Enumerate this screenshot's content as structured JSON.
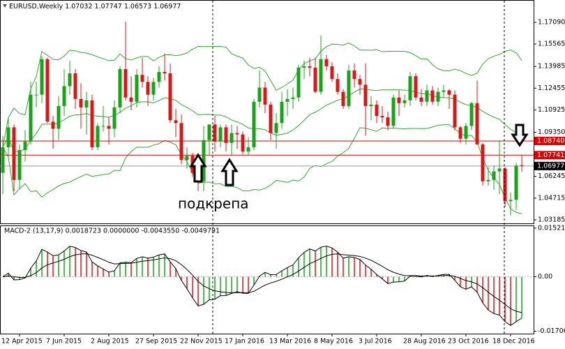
{
  "chart_data": {
    "type": "candlestick",
    "title": "EURUSD,Weekly",
    "categories": [
      null,
      null,
      null,
      "12 Apr 2015",
      null,
      null,
      null,
      null,
      null,
      null,
      null,
      "7 Jun 2015",
      null,
      null,
      null,
      null,
      null,
      null,
      null,
      "2 Aug 2015",
      null,
      null,
      null,
      null,
      null,
      null,
      null,
      "27 Sep 2015",
      null,
      null,
      null,
      null,
      null,
      null,
      null,
      "22 Nov 2015",
      null,
      null,
      null,
      null,
      null,
      null,
      null,
      "17 Jan 2016",
      null,
      null,
      null,
      null,
      null,
      null,
      null,
      "13 Mar 2016",
      null,
      null,
      null,
      null,
      null,
      null,
      null,
      "8 May 2016",
      null,
      null,
      null,
      null,
      null,
      null,
      null,
      "3 Jul 2016",
      null,
      null,
      null,
      null,
      null,
      null,
      null,
      "28 Aug 2016",
      null,
      null,
      null,
      null,
      null,
      null,
      null,
      "23 Oct 2016",
      null,
      null,
      null,
      null,
      null,
      null,
      null,
      "18 Dec 2016",
      null,
      null
    ],
    "candles": [
      [
        1.065,
        1.091,
        1.05,
        1.083
      ],
      [
        1.083,
        1.104,
        1.076,
        1.097
      ],
      [
        1.097,
        1.099,
        1.052,
        1.06
      ],
      [
        1.06,
        1.085,
        1.054,
        1.081
      ],
      [
        1.081,
        1.095,
        1.073,
        1.087
      ],
      [
        1.087,
        1.129,
        1.085,
        1.12
      ],
      [
        1.12,
        1.129,
        1.111,
        1.12
      ],
      [
        1.12,
        1.147,
        1.114,
        1.145
      ],
      [
        1.145,
        1.146,
        1.1,
        1.101
      ],
      [
        1.101,
        1.105,
        1.082,
        1.096
      ],
      [
        1.096,
        1.119,
        1.088,
        1.112
      ],
      [
        1.112,
        1.138,
        1.105,
        1.126
      ],
      [
        1.126,
        1.144,
        1.12,
        1.135
      ],
      [
        1.135,
        1.138,
        1.11,
        1.117
      ],
      [
        1.117,
        1.128,
        1.096,
        1.111
      ],
      [
        1.111,
        1.122,
        1.092,
        1.116
      ],
      [
        1.116,
        1.12,
        1.081,
        1.083
      ],
      [
        1.083,
        1.1,
        1.081,
        1.098
      ],
      [
        1.098,
        1.112,
        1.094,
        1.098
      ],
      [
        1.098,
        1.104,
        1.085,
        1.096
      ],
      [
        1.096,
        1.116,
        1.09,
        1.111
      ],
      [
        1.111,
        1.14,
        1.107,
        1.138
      ],
      [
        1.138,
        1.1714,
        1.116,
        1.118
      ],
      [
        1.118,
        1.133,
        1.109,
        1.115
      ],
      [
        1.115,
        1.138,
        1.111,
        1.134
      ],
      [
        1.134,
        1.146,
        1.125,
        1.129
      ],
      [
        1.129,
        1.133,
        1.112,
        1.12
      ],
      [
        1.12,
        1.132,
        1.116,
        1.129
      ],
      [
        1.129,
        1.14,
        1.125,
        1.136
      ],
      [
        1.136,
        1.149,
        1.13,
        1.135
      ],
      [
        1.135,
        1.142,
        1.1,
        1.102
      ],
      [
        1.102,
        1.11,
        1.09,
        1.1
      ],
      [
        1.1,
        1.106,
        1.071,
        1.074
      ],
      [
        1.074,
        1.083,
        1.068,
        1.077
      ],
      [
        1.077,
        1.079,
        1.062,
        1.065
      ],
      [
        1.065,
        1.07,
        1.052,
        1.059
      ],
      [
        1.059,
        1.098,
        1.052,
        1.088
      ],
      [
        1.088,
        1.099,
        1.078,
        1.099
      ],
      [
        1.099,
        1.105,
        1.08,
        1.087
      ],
      [
        1.087,
        1.099,
        1.083,
        1.097
      ],
      [
        1.097,
        1.099,
        1.08,
        1.086
      ],
      [
        1.086,
        1.099,
        1.077,
        1.093
      ],
      [
        1.093,
        1.098,
        1.082,
        1.092
      ],
      [
        1.092,
        1.094,
        1.078,
        1.08
      ],
      [
        1.08,
        1.09,
        1.077,
        1.083
      ],
      [
        1.083,
        1.117,
        1.081,
        1.115
      ],
      [
        1.115,
        1.137,
        1.111,
        1.125
      ],
      [
        1.125,
        1.129,
        1.107,
        1.113
      ],
      [
        1.113,
        1.115,
        1.088,
        1.093
      ],
      [
        1.093,
        1.107,
        1.082,
        1.1
      ],
      [
        1.1,
        1.122,
        1.096,
        1.115
      ],
      [
        1.115,
        1.124,
        1.105,
        1.117
      ],
      [
        1.117,
        1.125,
        1.11,
        1.118
      ],
      [
        1.118,
        1.141,
        1.115,
        1.139
      ],
      [
        1.139,
        1.144,
        1.131,
        1.14
      ],
      [
        1.14,
        1.146,
        1.133,
        1.139
      ],
      [
        1.139,
        1.146,
        1.121,
        1.122
      ],
      [
        1.122,
        1.1616,
        1.12,
        1.145
      ],
      [
        1.145,
        1.148,
        1.137,
        1.14
      ],
      [
        1.14,
        1.143,
        1.129,
        1.131
      ],
      [
        1.131,
        1.135,
        1.12,
        1.122
      ],
      [
        1.122,
        1.124,
        1.11,
        1.112
      ],
      [
        1.112,
        1.141,
        1.11,
        1.137
      ],
      [
        1.137,
        1.142,
        1.125,
        1.131
      ],
      [
        1.131,
        1.134,
        1.12,
        1.127
      ],
      [
        1.127,
        1.142,
        1.091,
        1.112
      ],
      [
        1.112,
        1.119,
        1.102,
        1.113
      ],
      [
        1.113,
        1.116,
        1.1,
        1.105
      ],
      [
        1.105,
        1.112,
        1.1,
        1.104
      ],
      [
        1.104,
        1.108,
        1.095,
        1.098
      ],
      [
        1.098,
        1.12,
        1.096,
        1.118
      ],
      [
        1.118,
        1.123,
        1.105,
        1.114
      ],
      [
        1.114,
        1.12,
        1.111,
        1.116
      ],
      [
        1.116,
        1.136,
        1.112,
        1.133
      ],
      [
        1.133,
        1.135,
        1.116,
        1.118
      ],
      [
        1.118,
        1.124,
        1.112,
        1.115
      ],
      [
        1.115,
        1.127,
        1.112,
        1.123
      ],
      [
        1.123,
        1.126,
        1.113,
        1.115
      ],
      [
        1.115,
        1.125,
        1.112,
        1.122
      ],
      [
        1.122,
        1.127,
        1.118,
        1.123
      ],
      [
        1.123,
        1.124,
        1.11,
        1.12
      ],
      [
        1.12,
        1.123,
        1.095,
        1.097
      ],
      [
        1.097,
        1.098,
        1.086,
        1.089
      ],
      [
        1.089,
        1.1,
        1.085,
        1.098
      ],
      [
        1.098,
        1.115,
        1.095,
        1.114
      ],
      [
        1.114,
        1.13,
        1.085,
        1.085
      ],
      [
        1.085,
        1.086,
        1.056,
        1.059
      ],
      [
        1.059,
        1.069,
        1.056,
        1.06
      ],
      [
        1.06,
        1.07,
        1.053,
        1.066
      ],
      [
        1.066,
        1.088,
        1.05,
        1.068
      ],
      [
        1.068,
        1.069,
        1.041,
        1.045
      ],
      [
        1.045,
        1.051,
        1.035,
        1.046
      ],
      [
        1.046,
        1.072,
        1.039,
        1.07
      ],
      [
        1.07032,
        1.07747,
        1.06573,
        1.06977
      ]
    ],
    "ylim": [
      1.0294,
      1.1778
    ],
    "yticks": [
      {
        "value": 1.1709,
        "label": "1.17090"
      },
      1.15565,
      1.13985,
      1.12455,
      1.10925,
      {
        "value": 1.0935,
        "label": "1.09350"
      },
      1.06245,
      1.04715,
      1.03185
    ],
    "levels": [
      {
        "value": 1.0874,
        "label": "1.08740",
        "color": "#e00000"
      },
      1.07741,
      1.06977
    ],
    "annotation": "подкрепа",
    "indicator": {
      "title": "MACD-2 (13,17,9) 0.0018723 0.0000000 -0.0043550 -0.0049791",
      "ylim": [
        -0.0178,
        0.0156
      ],
      "yticks": [
        0.015211,
        {
          "value": 0,
          "label": "0.00"
        },
        {
          "value": -0.01706,
          "label": "-0.017060"
        }
      ]
    }
  }
}
